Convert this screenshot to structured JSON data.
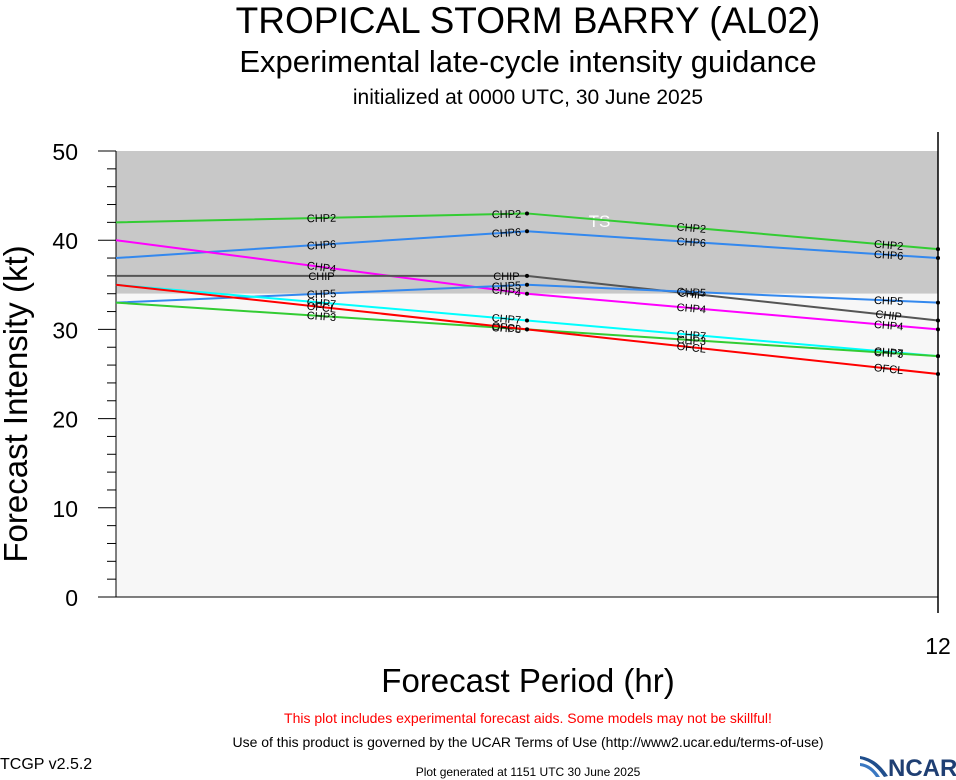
{
  "header": {
    "title": "TROPICAL STORM BARRY (AL02)",
    "subtitle": "Experimental late-cycle intensity guidance",
    "init": "initialized at 0000 UTC, 30 June 2025"
  },
  "footer": {
    "warning": "This plot includes experimental forecast aids. Some models may not be skillful!",
    "terms": "Use of this product is governed by the UCAR Terms of Use (http://www2.ucar.edu/terms-of-use)",
    "generated": "Plot generated at 1151 UTC   30 June 2025",
    "version": "TCGP v2.5.2",
    "logo_text": "NCAR"
  },
  "chart_data": {
    "type": "line",
    "title": "TROPICAL STORM BARRY (AL02)",
    "xlabel": "Forecast Period (hr)",
    "ylabel": "Forecast Intensity (kt)",
    "xlim": [
      0,
      12
    ],
    "ylim": [
      0,
      50
    ],
    "x_ticks": [
      12
    ],
    "y_ticks": [
      0,
      10,
      20,
      30,
      40,
      50
    ],
    "grid": false,
    "regions": [
      {
        "label": "TS",
        "y_from": 34,
        "y_to": 50,
        "color": "#c8c8c8"
      },
      {
        "label": "",
        "y_from": 0,
        "y_to": 34,
        "color": "#f7f7f7"
      }
    ],
    "x": [
      0,
      6,
      12
    ],
    "series": [
      {
        "name": "CHP2",
        "color": "#33cc33",
        "values": [
          42,
          43,
          39
        ]
      },
      {
        "name": "CHP6",
        "color": "#3388ee",
        "values": [
          38,
          41,
          38
        ]
      },
      {
        "name": "CHP4",
        "color": "#ff00ff",
        "values": [
          40,
          34,
          30
        ]
      },
      {
        "name": "CHIP",
        "color": "#555555",
        "values": [
          36,
          36,
          31
        ]
      },
      {
        "name": "CHP5",
        "color": "#3388ee",
        "values": [
          33,
          35,
          33
        ]
      },
      {
        "name": "CHP7",
        "color": "#00ffff",
        "values": [
          35,
          31,
          27
        ]
      },
      {
        "name": "CHP3",
        "color": "#33cc33",
        "values": [
          33,
          30,
          27
        ]
      },
      {
        "name": "OFCL",
        "color": "#ff0000",
        "values": [
          35,
          30,
          25
        ]
      }
    ]
  }
}
